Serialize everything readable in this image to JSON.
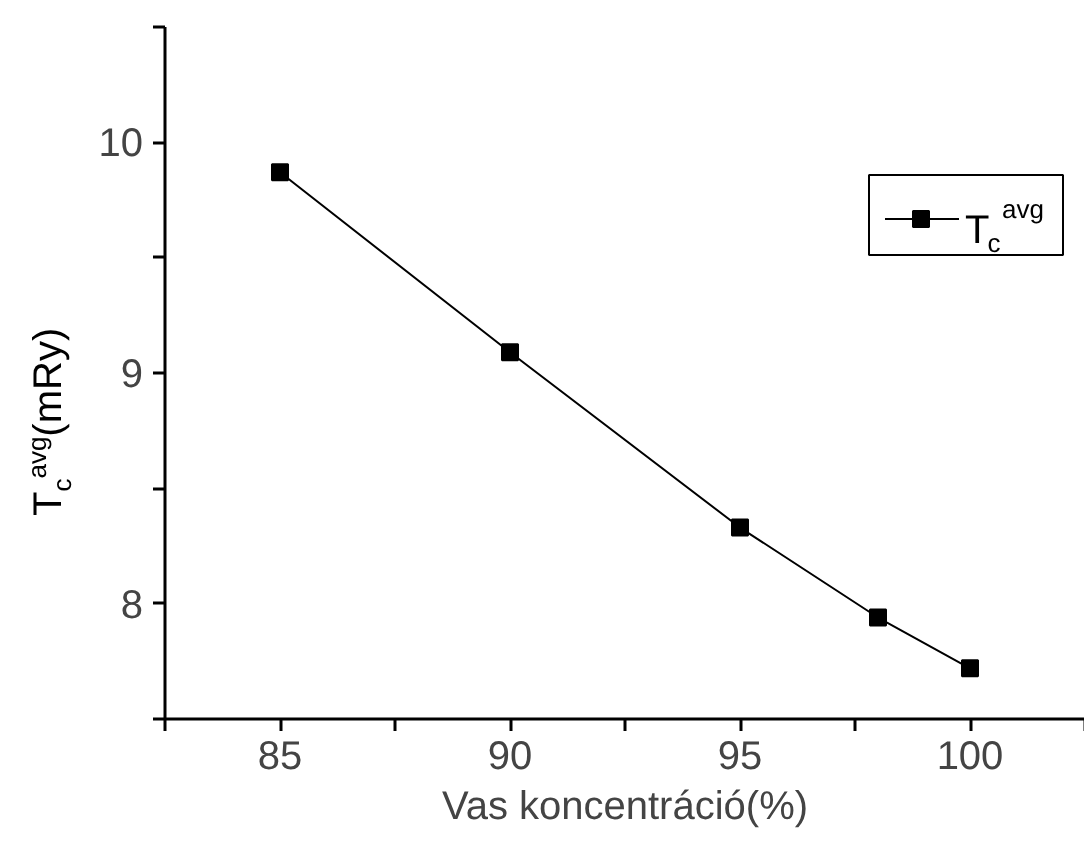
{
  "chart_data": {
    "type": "line",
    "xlabel": "Vas koncentráció(%)",
    "ylabel": "T$_{c}$$^{avg}$(mRy)",
    "x": [
      85,
      90,
      95,
      98,
      100
    ],
    "series": [
      {
        "name": "T$_{c}$$^{avg}$",
        "color": "#000000",
        "values": [
          9.87,
          9.09,
          8.33,
          7.94,
          7.72
        ]
      }
    ],
    "xlim": [
      82.5,
      102.5
    ],
    "ylim": [
      7.5,
      10.5
    ],
    "xticks": [
      {
        "value": 82.5,
        "label": null
      },
      85,
      {
        "value": 87.5,
        "label": null
      },
      90,
      {
        "value": 92.5,
        "label": null
      },
      95,
      {
        "value": 97.5,
        "label": null
      },
      100,
      {
        "value": 102.5,
        "label": null
      }
    ],
    "yticks": [
      {
        "value": 7.5,
        "label": null
      },
      8,
      {
        "value": 8.5,
        "label": null
      },
      9,
      {
        "value": 9.5,
        "label": null
      },
      10,
      {
        "value": 10.5,
        "label": null
      }
    ],
    "marker": "square",
    "line_style": "solid",
    "grid": false,
    "legend": "top right"
  }
}
